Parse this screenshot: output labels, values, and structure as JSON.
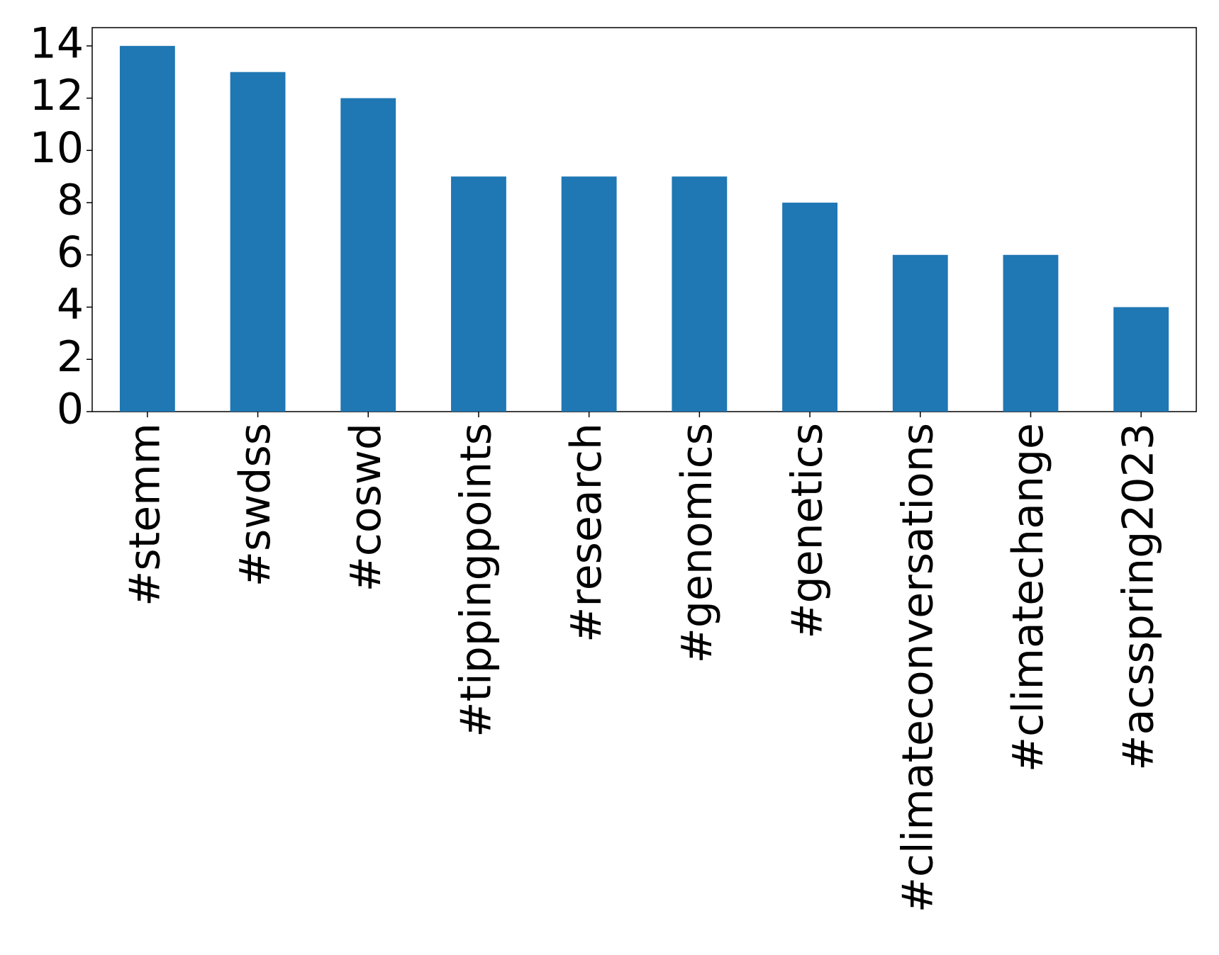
{
  "chart_data": {
    "type": "bar",
    "categories": [
      "#stemm",
      "#swdss",
      "#coswd",
      "#tippingpoints",
      "#research",
      "#genomics",
      "#genetics",
      "#climateconversations",
      "#climatechange",
      "#acsspring2023"
    ],
    "values": [
      14,
      13,
      12,
      9,
      9,
      9,
      8,
      6,
      6,
      4
    ],
    "color": "#1f77b4",
    "ylim": [
      0,
      14.7
    ],
    "yticks": [
      0,
      2,
      4,
      6,
      8,
      10,
      12,
      14
    ],
    "grid": false
  }
}
